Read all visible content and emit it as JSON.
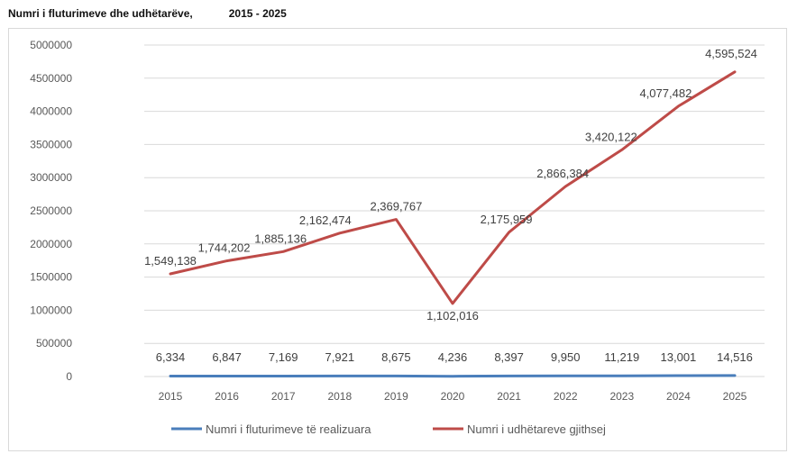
{
  "header": {
    "title": "Numri i fluturimeve dhe udhëtarëve,",
    "years": "2015 - 2025"
  },
  "chart_data": {
    "type": "line",
    "title": "Numri i fluturimeve dhe udhëtarëve, 2015 - 2025",
    "categories": [
      "2015",
      "2016",
      "2017",
      "2018",
      "2019",
      "2020",
      "2021",
      "2022",
      "2023",
      "2024",
      "2025"
    ],
    "ylim": [
      0,
      5000000
    ],
    "yticks": [
      0,
      500000,
      1000000,
      1500000,
      2000000,
      2500000,
      3000000,
      3500000,
      4000000,
      4500000,
      5000000
    ],
    "grid": true,
    "legend_position": "bottom",
    "series": [
      {
        "name": "Numri i fluturimeve të realizuara",
        "color": "#4a7ebb",
        "values": [
          6334,
          6847,
          7169,
          7921,
          8675,
          4236,
          8397,
          9950,
          11219,
          13001,
          14516
        ],
        "labels": [
          "6,334",
          "6,847",
          "7,169",
          "7,921",
          "8,675",
          "4,236",
          "8,397",
          "9,950",
          "11,219",
          "13,001",
          "14,516"
        ]
      },
      {
        "name": "Numri i udhëtareve gjithsej",
        "color": "#be4b48",
        "values": [
          1549138,
          1744202,
          1885136,
          2162474,
          2369767,
          1102016,
          2175959,
          2866384,
          3420122,
          4077482,
          4595524
        ],
        "labels": [
          "1,549,138",
          "1,744,202",
          "1,885,136",
          "2,162,474",
          "2,369,767",
          "1,102,016",
          "2,175,959",
          "2,866,384",
          "3,420,122",
          "4,077,482",
          "4,595,524"
        ]
      }
    ]
  }
}
